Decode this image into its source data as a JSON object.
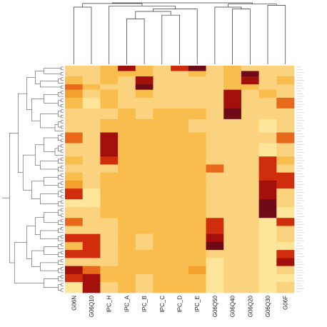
{
  "chart_data": {
    "type": "heatmap",
    "title": "",
    "xlabel": "",
    "ylabel": "",
    "columns": [
      "G06N",
      "G06Q10",
      "IPC_H",
      "IPC_A",
      "IPC_B",
      "IPC_C",
      "IPC_D",
      "IPC_E",
      "G06Q50",
      "G06Q40",
      "G06Q20",
      "G06Q30",
      "G06F"
    ],
    "color_scale": [
      "#fff7c4",
      "#fde59a",
      "#fbd27e",
      "#f9bd4e",
      "#f3a12d",
      "#e8691a",
      "#cf2d0d",
      "#a3100c",
      "#6e0b16"
    ],
    "value_range": [
      0,
      8
    ],
    "row_dendrogram": true,
    "column_dendrogram": true,
    "row_bands": [
      {
        "rows": 2,
        "values": [
          2,
          2,
          3,
          7,
          3,
          2,
          6,
          8,
          2,
          3,
          2,
          2,
          2
        ]
      },
      {
        "rows": 2,
        "values": [
          2,
          2,
          3,
          3,
          3,
          2,
          2,
          3,
          2,
          3,
          8,
          2,
          2
        ]
      },
      {
        "rows": 3,
        "values": [
          3,
          2,
          3,
          2,
          7,
          2,
          2,
          2,
          2,
          3,
          7,
          2,
          3
        ]
      },
      {
        "rows": 2,
        "values": [
          5,
          3,
          2,
          2,
          8,
          2,
          2,
          2,
          2,
          3,
          3,
          2,
          2
        ]
      },
      {
        "rows": 3,
        "values": [
          4,
          2,
          3,
          2,
          3,
          2,
          2,
          2,
          2,
          7,
          2,
          3,
          2
        ]
      },
      {
        "rows": 4,
        "values": [
          3,
          1,
          3,
          2,
          2,
          2,
          2,
          2,
          2,
          7,
          2,
          2,
          5
        ]
      },
      {
        "rows": 4,
        "values": [
          2,
          2,
          2,
          3,
          2,
          3,
          3,
          3,
          2,
          8,
          2,
          2,
          2
        ]
      },
      {
        "rows": 5,
        "values": [
          2,
          2,
          3,
          3,
          3,
          3,
          3,
          2,
          2,
          2,
          2,
          1,
          2
        ]
      },
      {
        "rows": 4,
        "values": [
          5,
          2,
          7,
          3,
          3,
          3,
          3,
          3,
          2,
          2,
          2,
          2,
          5
        ]
      },
      {
        "rows": 5,
        "values": [
          2,
          2,
          7,
          3,
          3,
          3,
          3,
          3,
          2,
          2,
          2,
          1,
          2
        ]
      },
      {
        "rows": 3,
        "values": [
          3,
          2,
          6,
          3,
          3,
          3,
          3,
          3,
          2,
          2,
          2,
          6,
          3
        ]
      },
      {
        "rows": 3,
        "values": [
          2,
          2,
          2,
          3,
          3,
          3,
          3,
          3,
          5,
          2,
          2,
          6,
          2
        ]
      },
      {
        "rows": 3,
        "values": [
          3,
          2,
          3,
          3,
          3,
          3,
          3,
          3,
          2,
          2,
          2,
          6,
          6
        ]
      },
      {
        "rows": 3,
        "values": [
          4,
          2,
          3,
          3,
          3,
          3,
          3,
          3,
          2,
          2,
          2,
          7,
          6
        ]
      },
      {
        "rows": 4,
        "values": [
          6,
          1,
          3,
          3,
          3,
          3,
          3,
          3,
          2,
          2,
          2,
          7,
          2
        ]
      },
      {
        "rows": 3,
        "values": [
          1,
          1,
          3,
          3,
          3,
          3,
          3,
          3,
          2,
          2,
          2,
          8,
          2
        ]
      },
      {
        "rows": 4,
        "values": [
          2,
          2,
          3,
          3,
          3,
          3,
          3,
          3,
          2,
          2,
          2,
          8,
          1
        ]
      },
      {
        "rows": 3,
        "values": [
          5,
          2,
          2,
          3,
          3,
          3,
          3,
          3,
          6,
          2,
          2,
          1,
          6
        ]
      },
      {
        "rows": 3,
        "values": [
          2,
          2,
          2,
          3,
          3,
          3,
          3,
          3,
          6,
          2,
          2,
          1,
          2
        ]
      },
      {
        "rows": 3,
        "values": [
          6,
          6,
          2,
          3,
          2,
          3,
          3,
          3,
          7,
          2,
          2,
          1,
          2
        ]
      },
      {
        "rows": 3,
        "values": [
          3,
          6,
          2,
          3,
          2,
          3,
          3,
          3,
          8,
          2,
          2,
          1,
          1
        ]
      },
      {
        "rows": 3,
        "values": [
          6,
          6,
          2,
          3,
          3,
          3,
          3,
          3,
          2,
          2,
          2,
          1,
          6
        ]
      },
      {
        "rows": 3,
        "values": [
          2,
          2,
          2,
          3,
          3,
          3,
          3,
          3,
          1,
          2,
          2,
          1,
          7
        ]
      },
      {
        "rows": 3,
        "values": [
          7,
          5,
          3,
          3,
          3,
          3,
          3,
          4,
          1,
          2,
          2,
          1,
          2
        ]
      },
      {
        "rows": 3,
        "values": [
          6,
          7,
          3,
          3,
          2,
          3,
          3,
          3,
          1,
          2,
          2,
          1,
          1
        ]
      },
      {
        "rows": 4,
        "values": [
          1,
          7,
          2,
          3,
          2,
          3,
          3,
          3,
          1,
          2,
          2,
          1,
          2
        ]
      }
    ]
  }
}
